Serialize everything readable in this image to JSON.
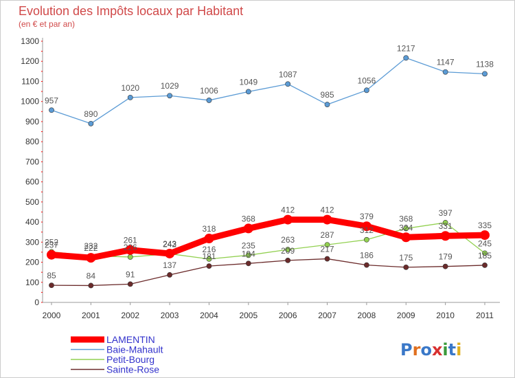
{
  "chart_data": {
    "type": "line",
    "title": "Evolution des Impôts locaux par Habitant",
    "subtitle": "(en € et par an)",
    "xlabel": "",
    "ylabel": "",
    "ylim": [
      0,
      1300
    ],
    "yticks": [
      0,
      100,
      200,
      300,
      400,
      500,
      600,
      700,
      800,
      900,
      1000,
      1100,
      1200,
      1300
    ],
    "grid": false,
    "legend_position": "bottom-left",
    "categories": [
      "2000",
      "2001",
      "2002",
      "2003",
      "2004",
      "2005",
      "2006",
      "2007",
      "2008",
      "2009",
      "2010",
      "2011"
    ],
    "series": [
      {
        "name": "LAMENTIN",
        "color": "#ff0000",
        "values": [
          237,
          222,
          261,
          243,
          318,
          368,
          412,
          412,
          379,
          324,
          331,
          335
        ],
        "emphasis": true
      },
      {
        "name": "Baie-Mahault",
        "color": "#5b9bd5",
        "values": [
          957,
          890,
          1020,
          1029,
          1006,
          1049,
          1087,
          985,
          1056,
          1217,
          1147,
          1138
        ],
        "emphasis": false
      },
      {
        "name": "Petit-Bourg",
        "color": "#92d050",
        "values": [
          252,
          232,
          226,
          242,
          216,
          235,
          263,
          287,
          312,
          368,
          397,
          245
        ],
        "emphasis": false
      },
      {
        "name": "Sainte-Rose",
        "color": "#6b2b2b",
        "values": [
          85,
          84,
          91,
          137,
          181,
          194,
          209,
          217,
          186,
          175,
          179,
          185
        ],
        "emphasis": false
      }
    ]
  },
  "logo": {
    "text": "Proxiti"
  },
  "colors": {
    "title": "#d04848",
    "axis": "#999999",
    "tick_mark": "#ff0000"
  }
}
